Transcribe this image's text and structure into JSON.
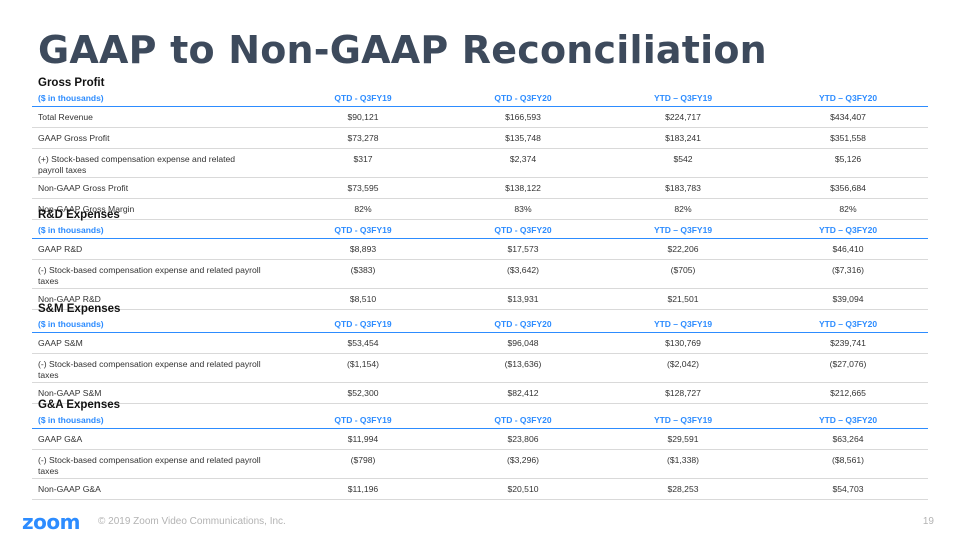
{
  "title": "GAAP to Non-GAAP Reconciliation",
  "columns": {
    "units": "($ in thousands)",
    "q1": "QTD - Q3FY19",
    "q2": "QTD - Q3FY20",
    "y1": "YTD – Q3FY19",
    "y2": "YTD – Q3FY20"
  },
  "sections": [
    {
      "name": "Gross Profit",
      "rows": [
        {
          "label": "Total Revenue",
          "values": [
            "$90,121",
            "$166,593",
            "$224,717",
            "$434,407"
          ]
        },
        {
          "label": "GAAP Gross Profit",
          "values": [
            "$73,278",
            "$135,748",
            "$183,241",
            "$351,558"
          ]
        },
        {
          "label": "(+) Stock-based compensation expense and related payroll taxes",
          "values": [
            "$317",
            "$2,374",
            "$542",
            "$5,126"
          ]
        },
        {
          "label": "Non-GAAP Gross Profit",
          "values": [
            "$73,595",
            "$138,122",
            "$183,783",
            "$356,684"
          ]
        },
        {
          "label": "Non-GAAP Gross Margin",
          "values": [
            "82%",
            "83%",
            "82%",
            "82%"
          ]
        }
      ]
    },
    {
      "name": "R&D Expenses",
      "rows": [
        {
          "label": "GAAP R&D",
          "values": [
            "$8,893",
            "$17,573",
            "$22,206",
            "$46,410"
          ]
        },
        {
          "label": "(-) Stock-based compensation expense and related payroll taxes",
          "values": [
            "($383)",
            "($3,642)",
            "($705)",
            "($7,316)"
          ]
        },
        {
          "label": "Non-GAAP R&D",
          "values": [
            "$8,510",
            "$13,931",
            "$21,501",
            "$39,094"
          ]
        }
      ]
    },
    {
      "name": "S&M Expenses",
      "rows": [
        {
          "label": "GAAP S&M",
          "values": [
            "$53,454",
            "$96,048",
            "$130,769",
            "$239,741"
          ]
        },
        {
          "label": "(-) Stock-based compensation expense and related payroll taxes",
          "values": [
            "($1,154)",
            "($13,636)",
            "($2,042)",
            "($27,076)"
          ]
        },
        {
          "label": "Non-GAAP S&M",
          "values": [
            "$52,300",
            "$82,412",
            "$128,727",
            "$212,665"
          ]
        }
      ]
    },
    {
      "name": "G&A Expenses",
      "rows": [
        {
          "label": "GAAP G&A",
          "values": [
            "$11,994",
            "$23,806",
            "$29,591",
            "$63,264"
          ]
        },
        {
          "label": "(-) Stock-based compensation expense and related payroll taxes",
          "values": [
            "($798)",
            "($3,296)",
            "($1,338)",
            "($8,561)"
          ]
        },
        {
          "label": "Non-GAAP G&A",
          "values": [
            "$11,196",
            "$20,510",
            "$28,253",
            "$54,703"
          ]
        }
      ]
    }
  ],
  "footer": {
    "logo": "zoom",
    "copyright": "© 2019 Zoom Video Communications, Inc.",
    "page": "19"
  }
}
